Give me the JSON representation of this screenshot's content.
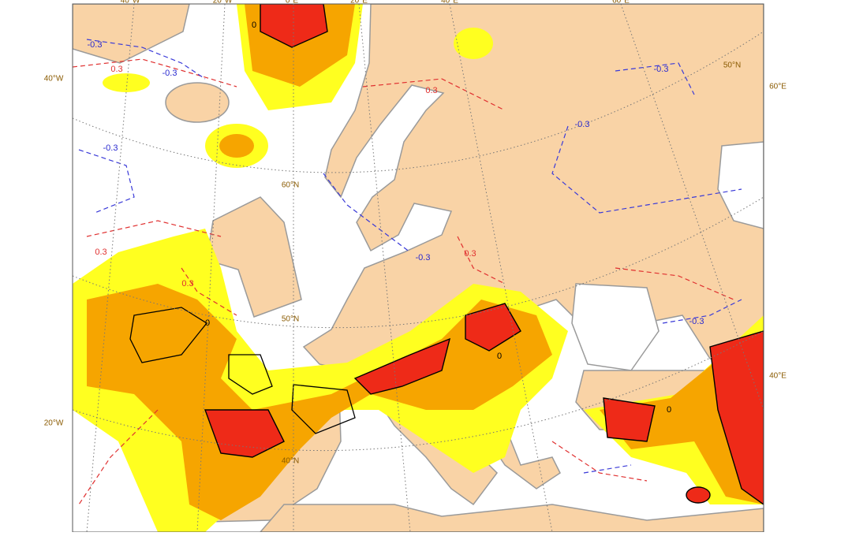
{
  "map": {
    "lon_labels_top": [
      "40°W",
      "20°W",
      "0°E",
      "20°E",
      "40°E",
      "60°E"
    ],
    "lon_labels_left": [
      "40°W",
      "20°W"
    ],
    "lon_labels_right": [
      "60°E",
      "40°E"
    ],
    "lat_labels": [
      "50°N",
      "60°N",
      "50°N",
      "40°N"
    ],
    "contour_labels": [
      "-0.3",
      "0.3",
      "-0.3",
      "-0.3",
      "-0.3",
      "-0.3",
      "0.3",
      "-0.3",
      "0.3",
      "0.3",
      "0.3",
      "-0.3",
      "0",
      "0",
      "0",
      "0"
    ]
  }
}
